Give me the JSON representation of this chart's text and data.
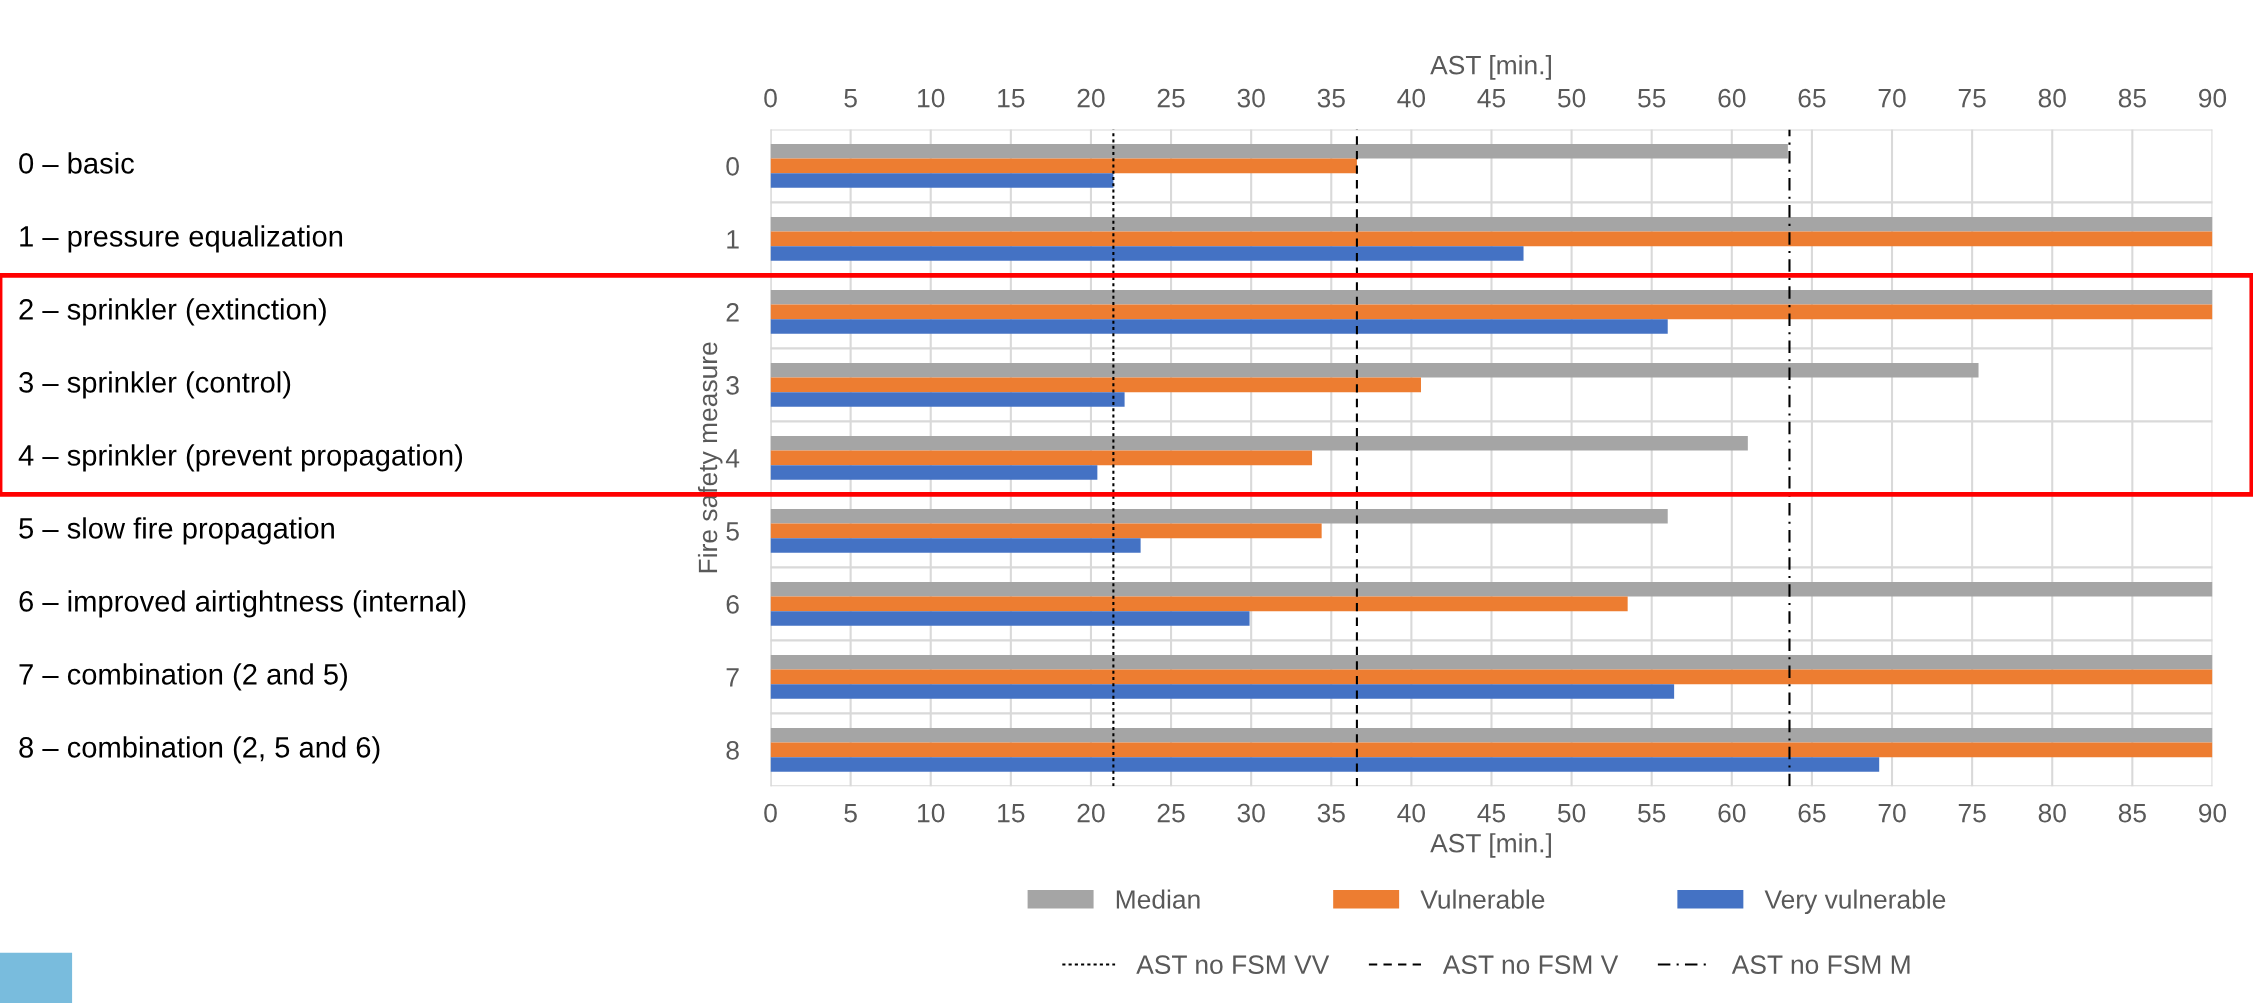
{
  "chart_data": {
    "type": "bar",
    "orientation": "horizontal",
    "categories": [
      "0",
      "1",
      "2",
      "3",
      "4",
      "5",
      "6",
      "7",
      "8"
    ],
    "series": [
      {
        "name": "Median",
        "color": "#a5a5a5",
        "values": [
          63.5,
          90,
          90,
          75.4,
          61,
          56,
          90,
          90,
          90
        ]
      },
      {
        "name": "Vulnerable",
        "color": "#ed7d31",
        "values": [
          36.6,
          90,
          90,
          40.6,
          33.8,
          34.4,
          53.5,
          90,
          90
        ]
      },
      {
        "name": "Very vulnerable",
        "color": "#4472c4",
        "values": [
          21.4,
          47,
          56,
          22.1,
          20.4,
          23.1,
          29.9,
          56.4,
          69.2
        ]
      }
    ],
    "xlabel": "AST [min.]",
    "x2label": "AST [min.]",
    "ylabel": "Fire safety measure",
    "xlim": [
      0,
      90
    ],
    "xticks": [
      0,
      5,
      10,
      15,
      20,
      25,
      30,
      35,
      40,
      45,
      50,
      55,
      60,
      65,
      70,
      75,
      80,
      85,
      90
    ],
    "x2lim": [
      0,
      90
    ],
    "x2ticks": [
      0,
      5,
      10,
      15,
      20,
      25,
      30,
      35,
      40,
      45,
      50,
      55,
      60,
      65,
      70,
      75,
      80,
      85,
      90
    ],
    "ref_lines": [
      {
        "axis": "x",
        "value": 21.4,
        "label": "AST no FSM VV",
        "color": "#000000",
        "line_style": "dotted"
      },
      {
        "axis": "x",
        "value": 36.6,
        "label": "AST no FSM V",
        "color": "#000000",
        "line_style": "dashed"
      },
      {
        "axis": "x",
        "value": 63.6,
        "label": "AST no FSM M",
        "color": "#000000",
        "line_style": "dashdot"
      }
    ],
    "annotations": [
      "0 – basic",
      "1 – pressure equalization",
      "2 – sprinkler (extinction)",
      "3 – sprinkler (control)",
      "4 – sprinkler (prevent propagation)",
      "5 – slow fire propagation",
      "6 – improved airtightness (internal)",
      "7 – combination (2 and 5)",
      "8 – combination (2, 5 and 6)"
    ],
    "grid": true,
    "legend": "bottom"
  }
}
